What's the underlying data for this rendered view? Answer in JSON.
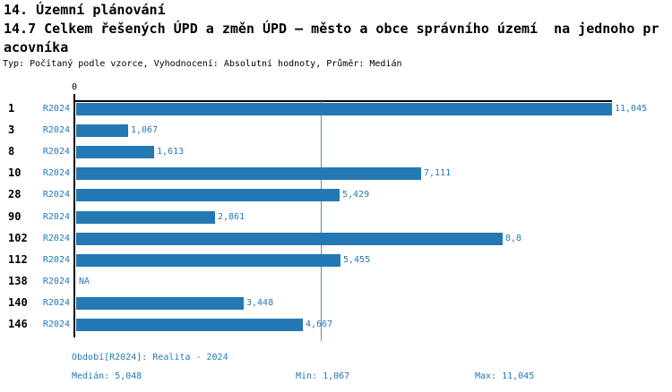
{
  "header": {
    "section_title": "14. Územní plánování",
    "subtitle_line1": "14.7 Celkem řešených ÚPD a změn ÚPD – město a obce správního území  na jednoho pr",
    "subtitle_line2": "acovníka",
    "meta": "Typ: Počítaný podle vzorce, Vyhodnocení: Absolutní hodnoty, Průměr: Medián"
  },
  "chart_data": {
    "type": "bar",
    "orientation": "horizontal",
    "title": "14.7 Celkem řešených ÚPD a změn ÚPD – město a obce správního území na jednoho pracovníka",
    "axis_zero_label": "0",
    "xlim": [
      0,
      11.045
    ],
    "grid": false,
    "legend_position": "none",
    "median_reference_line": 5.048,
    "series_name": "R2024",
    "categories": [
      "1",
      "3",
      "8",
      "10",
      "28",
      "90",
      "102",
      "112",
      "138",
      "140",
      "146"
    ],
    "values": [
      11.045,
      1.067,
      1.613,
      7.111,
      5.429,
      2.861,
      8.8,
      5.455,
      null,
      3.448,
      4.667
    ],
    "value_labels": [
      "11,045",
      "1,067",
      "1,613",
      "7,111",
      "5,429",
      "2,861",
      "8,8",
      "5,455",
      "NA",
      "3,448",
      "4,667"
    ]
  },
  "footer": {
    "period": "Období[R2024]: Realita - 2024",
    "median": "Medián: 5,048",
    "min": "Min: 1,067",
    "max": "Max: 11,045"
  },
  "colors": {
    "bar": "#2478b4",
    "median_line": "#4793c4",
    "blue_text": "#2478b4",
    "axis": "#000000"
  }
}
